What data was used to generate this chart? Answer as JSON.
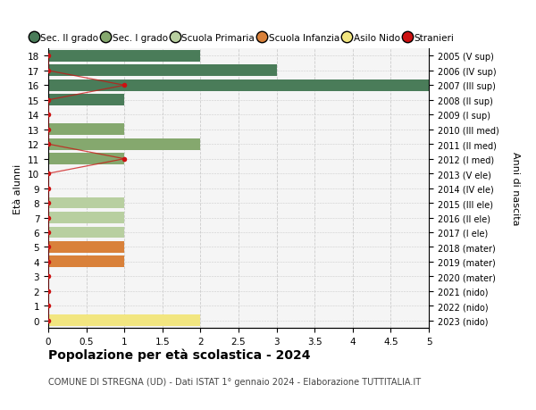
{
  "ages": [
    18,
    17,
    16,
    15,
    14,
    13,
    12,
    11,
    10,
    9,
    8,
    7,
    6,
    5,
    4,
    3,
    2,
    1,
    0
  ],
  "years": [
    "2005 (V sup)",
    "2006 (IV sup)",
    "2007 (III sup)",
    "2008 (II sup)",
    "2009 (I sup)",
    "2010 (III med)",
    "2011 (II med)",
    "2012 (I med)",
    "2013 (V ele)",
    "2014 (IV ele)",
    "2015 (III ele)",
    "2016 (II ele)",
    "2017 (I ele)",
    "2018 (mater)",
    "2019 (mater)",
    "2020 (mater)",
    "2021 (nido)",
    "2022 (nido)",
    "2023 (nido)"
  ],
  "bar_values": [
    2,
    3,
    5,
    1,
    0,
    1,
    2,
    1,
    0,
    0,
    1,
    1,
    1,
    1,
    1,
    0,
    0,
    0,
    2
  ],
  "bar_colors": [
    "#4a7c59",
    "#4a7c59",
    "#4a7c59",
    "#4a7c59",
    "#4a7c59",
    "#85a86e",
    "#85a86e",
    "#85a86e",
    "#b8cfa0",
    "#b8cfa0",
    "#b8cfa0",
    "#b8cfa0",
    "#b8cfa0",
    "#d9813a",
    "#d9813a",
    "#d9813a",
    "#f2e680",
    "#f2e680",
    "#f2e680"
  ],
  "stranieri_x": [
    0,
    0,
    1,
    0,
    0,
    0,
    0,
    1,
    0,
    0,
    0,
    0,
    0,
    0,
    0,
    0,
    0,
    0,
    0
  ],
  "legend_labels": [
    "Sec. II grado",
    "Sec. I grado",
    "Scuola Primaria",
    "Scuola Infanzia",
    "Asilo Nido",
    "Stranieri"
  ],
  "legend_colors": [
    "#4a7c59",
    "#85a86e",
    "#b8cfa0",
    "#d9813a",
    "#f2e680",
    "#cc1111"
  ],
  "ylabel_left": "Età alunni",
  "ylabel_right": "Anni di nascita",
  "title": "Popolazione per età scolastica - 2024",
  "subtitle": "COMUNE DI STREGNA (UD) - Dati ISTAT 1° gennaio 2024 - Elaborazione TUTTITALIA.IT",
  "xlim": [
    0,
    5.0
  ],
  "xticks": [
    0,
    0.5,
    1.0,
    1.5,
    2.0,
    2.5,
    3.0,
    3.5,
    4.0,
    4.5,
    5.0
  ],
  "bg_color": "#ffffff",
  "plot_bg_color": "#f5f5f5",
  "grid_color": "#cccccc"
}
